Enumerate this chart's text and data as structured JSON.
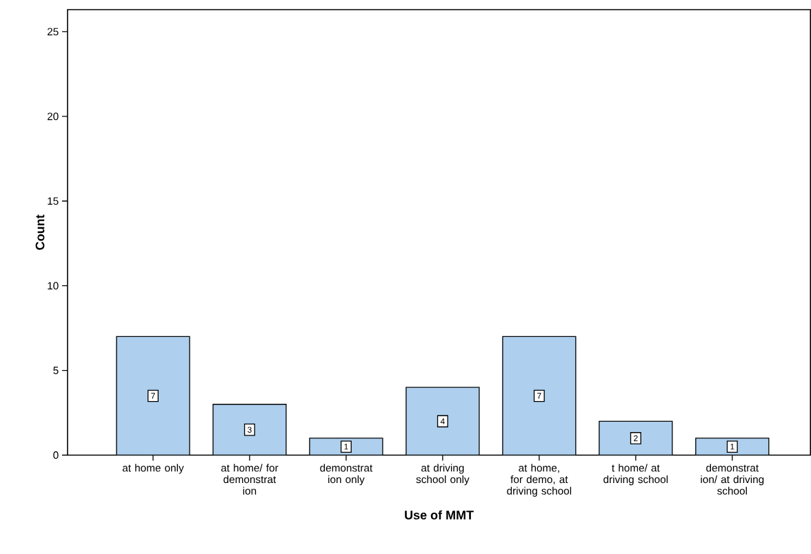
{
  "chart_data": {
    "type": "bar",
    "categories": [
      "at home only",
      "at home/ for demonstrat ion",
      "demonstrat ion only",
      "at driving school only",
      "at home, for demo, at driving school",
      "t home/ at driving school",
      "demonstrat ion/ at driving school"
    ],
    "values": [
      7,
      3,
      1,
      4,
      7,
      2,
      1
    ],
    "color": "#aecfee",
    "xlabel": "Use of MMT",
    "ylabel": "Count",
    "ylim": [
      0,
      26.3
    ],
    "yticks": [
      0,
      5,
      10,
      15,
      20,
      25
    ],
    "data_labels": true,
    "grid": false
  }
}
